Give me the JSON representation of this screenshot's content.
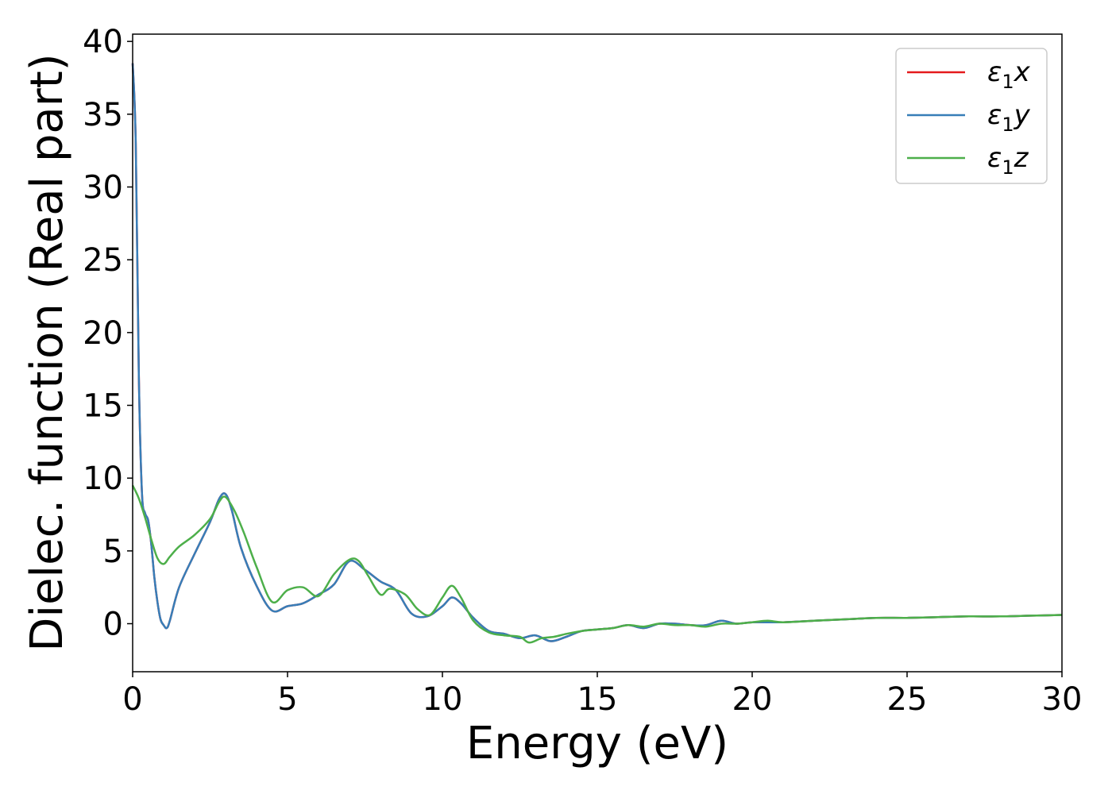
{
  "chart_data": {
    "type": "line",
    "title": "",
    "xlabel": "Energy (eV)",
    "ylabel": "Dielec. function (Real part)",
    "xlim": [
      0,
      30
    ],
    "ylim": [
      -3.3,
      40.5
    ],
    "xticks": [
      "0",
      "5",
      "10",
      "15",
      "20",
      "25",
      "30"
    ],
    "yticks": [
      "0",
      "5",
      "10",
      "15",
      "20",
      "25",
      "30",
      "35",
      "40"
    ],
    "grid": false,
    "legend_position": "top-right",
    "series": [
      {
        "name": "ε1x",
        "legend_symbol": "ε",
        "legend_sub": "1",
        "legend_var": "x",
        "color": "#e41a1c",
        "x": [
          0,
          0.1,
          0.2,
          0.3,
          0.4,
          0.5,
          0.6,
          0.7,
          0.8,
          0.9,
          1.0,
          1.1,
          1.2,
          1.5,
          2.0,
          2.5,
          2.8,
          3.0,
          3.2,
          3.5,
          4.0,
          4.5,
          5.0,
          5.5,
          6.0,
          6.5,
          7.0,
          7.5,
          8.0,
          8.5,
          9.0,
          9.5,
          10.0,
          10.3,
          10.6,
          11.0,
          11.5,
          12.0,
          12.5,
          13.0,
          13.5,
          14.0,
          14.5,
          15.0,
          15.5,
          16.0,
          16.5,
          17.0,
          17.5,
          18.0,
          18.5,
          19.0,
          19.5,
          20.0,
          21.0,
          22.0,
          23.0,
          24.0,
          25.0,
          26.0,
          27.0,
          28.0,
          29.0,
          30.0
        ],
        "y": [
          38.5,
          33.0,
          17.0,
          9.0,
          7.6,
          7.1,
          5.5,
          3.2,
          1.5,
          0.3,
          -0.1,
          -0.3,
          0.2,
          2.5,
          4.8,
          7.0,
          8.6,
          8.9,
          7.8,
          5.2,
          2.6,
          0.9,
          1.2,
          1.4,
          2.0,
          2.7,
          4.3,
          3.7,
          2.9,
          2.3,
          0.7,
          0.5,
          1.2,
          1.8,
          1.4,
          0.4,
          -0.5,
          -0.7,
          -1.0,
          -0.8,
          -1.2,
          -0.9,
          -0.5,
          -0.4,
          -0.3,
          -0.1,
          -0.3,
          0.0,
          0.0,
          -0.1,
          -0.1,
          0.2,
          0.0,
          0.1,
          0.1,
          0.2,
          0.3,
          0.4,
          0.4,
          0.45,
          0.5,
          0.5,
          0.55,
          0.6
        ]
      },
      {
        "name": "ε1y",
        "legend_symbol": "ε",
        "legend_sub": "1",
        "legend_var": "y",
        "color": "#377eb8",
        "x": [
          0,
          0.1,
          0.2,
          0.3,
          0.4,
          0.5,
          0.6,
          0.7,
          0.8,
          0.9,
          1.0,
          1.1,
          1.2,
          1.5,
          2.0,
          2.5,
          2.8,
          3.0,
          3.2,
          3.5,
          4.0,
          4.5,
          5.0,
          5.5,
          6.0,
          6.5,
          7.0,
          7.5,
          8.0,
          8.5,
          9.0,
          9.5,
          10.0,
          10.3,
          10.6,
          11.0,
          11.5,
          12.0,
          12.5,
          13.0,
          13.5,
          14.0,
          14.5,
          15.0,
          15.5,
          16.0,
          16.5,
          17.0,
          17.5,
          18.0,
          18.5,
          19.0,
          19.5,
          20.0,
          21.0,
          22.0,
          23.0,
          24.0,
          25.0,
          26.0,
          27.0,
          28.0,
          29.0,
          30.0
        ],
        "y": [
          38.5,
          33.0,
          17.0,
          9.0,
          7.6,
          7.1,
          5.5,
          3.2,
          1.5,
          0.3,
          -0.1,
          -0.3,
          0.2,
          2.5,
          4.8,
          7.0,
          8.6,
          8.9,
          7.8,
          5.2,
          2.6,
          0.9,
          1.2,
          1.4,
          2.0,
          2.7,
          4.3,
          3.7,
          2.9,
          2.3,
          0.7,
          0.5,
          1.2,
          1.8,
          1.4,
          0.4,
          -0.5,
          -0.7,
          -1.0,
          -0.8,
          -1.2,
          -0.9,
          -0.5,
          -0.4,
          -0.3,
          -0.1,
          -0.3,
          0.0,
          0.0,
          -0.1,
          -0.1,
          0.2,
          0.0,
          0.1,
          0.1,
          0.2,
          0.3,
          0.4,
          0.4,
          0.45,
          0.5,
          0.5,
          0.55,
          0.6
        ]
      },
      {
        "name": "ε1z",
        "legend_symbol": "ε",
        "legend_sub": "1",
        "legend_var": "z",
        "color": "#4daf4a",
        "x": [
          0,
          0.2,
          0.4,
          0.6,
          0.8,
          1.0,
          1.2,
          1.5,
          2.0,
          2.5,
          2.8,
          3.0,
          3.3,
          3.6,
          4.0,
          4.5,
          5.0,
          5.5,
          6.0,
          6.5,
          7.0,
          7.3,
          7.6,
          8.0,
          8.3,
          8.8,
          9.2,
          9.6,
          10.0,
          10.3,
          10.6,
          11.0,
          11.5,
          12.0,
          12.5,
          12.8,
          13.2,
          13.6,
          14.0,
          14.5,
          15.0,
          15.5,
          16.0,
          16.5,
          17.0,
          17.5,
          18.0,
          18.5,
          19.0,
          19.5,
          20.0,
          20.5,
          21.0,
          22.0,
          23.0,
          24.0,
          25.0,
          26.0,
          27.0,
          28.0,
          29.0,
          30.0
        ],
        "y": [
          9.5,
          8.6,
          7.3,
          5.8,
          4.5,
          4.1,
          4.6,
          5.3,
          6.1,
          7.2,
          8.4,
          8.7,
          7.7,
          6.2,
          3.9,
          1.5,
          2.3,
          2.5,
          1.9,
          3.4,
          4.4,
          4.3,
          3.3,
          2.0,
          2.4,
          2.0,
          1.0,
          0.6,
          1.8,
          2.6,
          1.8,
          0.2,
          -0.6,
          -0.8,
          -0.9,
          -1.3,
          -1.0,
          -0.9,
          -0.7,
          -0.5,
          -0.4,
          -0.3,
          -0.1,
          -0.2,
          0.0,
          -0.1,
          -0.1,
          -0.2,
          0.0,
          0.0,
          0.1,
          0.2,
          0.1,
          0.2,
          0.3,
          0.4,
          0.4,
          0.45,
          0.5,
          0.5,
          0.55,
          0.6
        ]
      }
    ]
  }
}
